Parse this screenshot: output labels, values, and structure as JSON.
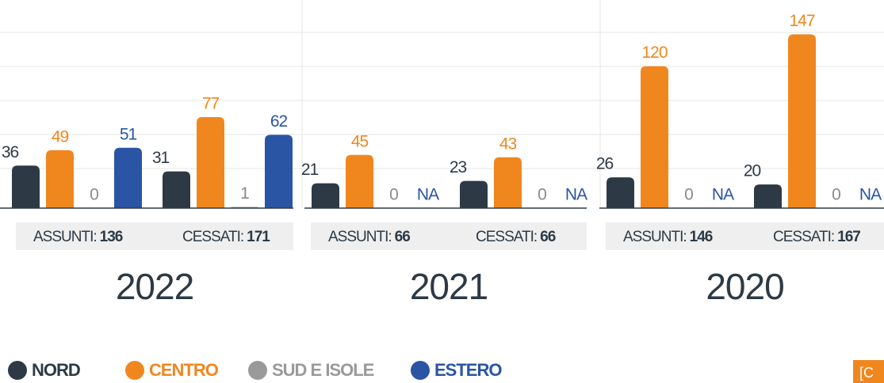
{
  "chart_data": [
    {
      "type": "bar",
      "title": "2022",
      "categories": [
        "ASSUNTI:",
        "CESSATI:"
      ],
      "totals": [
        136,
        171
      ],
      "ylim": [
        0,
        176
      ],
      "series": [
        {
          "name": "NORD",
          "color": "#2d3a45",
          "values": [
            36,
            31
          ]
        },
        {
          "name": "CENTRO",
          "color": "#f0871e",
          "values": [
            49,
            77
          ]
        },
        {
          "name": "SUD E ISOLE",
          "color": "#9a9a9a",
          "values": [
            0,
            1
          ]
        },
        {
          "name": "ESTERO",
          "color": "#2a55a4",
          "values": [
            51,
            62
          ]
        }
      ]
    },
    {
      "type": "bar",
      "title": "2021",
      "categories": [
        "ASSUNTI:",
        "CESSATI:"
      ],
      "totals": [
        66,
        66
      ],
      "ylim": [
        0,
        176
      ],
      "series": [
        {
          "name": "NORD",
          "color": "#2d3a45",
          "values": [
            21,
            23
          ]
        },
        {
          "name": "CENTRO",
          "color": "#f0871e",
          "values": [
            45,
            43
          ]
        },
        {
          "name": "SUD E ISOLE",
          "color": "#9a9a9a",
          "values": [
            0,
            0
          ]
        },
        {
          "name": "ESTERO",
          "color": "#2a55a4",
          "values": [
            null,
            null
          ],
          "value_labels": [
            "NA",
            "NA"
          ]
        }
      ]
    },
    {
      "type": "bar",
      "title": "2020",
      "categories": [
        "ASSUNTI:",
        "CESSATI:"
      ],
      "totals": [
        146,
        167
      ],
      "ylim": [
        0,
        176
      ],
      "series": [
        {
          "name": "NORD",
          "color": "#2d3a45",
          "values": [
            26,
            20
          ]
        },
        {
          "name": "CENTRO",
          "color": "#f0871e",
          "values": [
            120,
            147
          ]
        },
        {
          "name": "SUD E ISOLE",
          "color": "#9a9a9a",
          "values": [
            0,
            0
          ]
        },
        {
          "name": "ESTERO",
          "color": "#2a55a4",
          "values": [
            null,
            null
          ],
          "value_labels": [
            "NA",
            "NA"
          ]
        }
      ]
    }
  ],
  "corner_label": "[C"
}
